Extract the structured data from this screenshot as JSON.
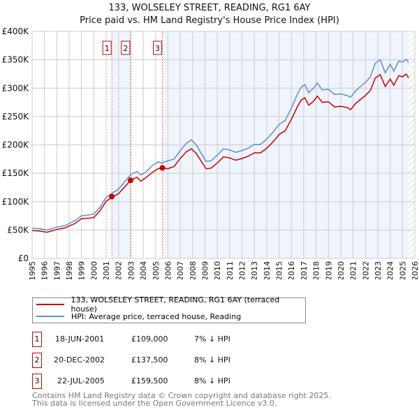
{
  "chart_data": {
    "type": "line",
    "title": "133, WOLSELEY STREET, READING, RG1 6AY",
    "subtitle": "Price paid vs. HM Land Registry's House Price Index (HPI)",
    "xlim": [
      1995,
      2026
    ],
    "ylim": [
      0,
      400000
    ],
    "yticks": [
      {
        "v": 0,
        "label": "£0"
      },
      {
        "v": 50000,
        "label": "£50K"
      },
      {
        "v": 100000,
        "label": "£100K"
      },
      {
        "v": 150000,
        "label": "£150K"
      },
      {
        "v": 200000,
        "label": "£200K"
      },
      {
        "v": 250000,
        "label": "£250K"
      },
      {
        "v": 300000,
        "label": "£300K"
      },
      {
        "v": 350000,
        "label": "£350K"
      },
      {
        "v": 400000,
        "label": "£400K"
      }
    ],
    "xticks": [
      "1995",
      "1996",
      "1997",
      "1998",
      "1999",
      "2000",
      "2001",
      "2002",
      "2003",
      "2004",
      "2005",
      "2006",
      "2007",
      "2008",
      "2009",
      "2010",
      "2011",
      "2012",
      "2013",
      "2014",
      "2015",
      "2016",
      "2017",
      "2018",
      "2019",
      "2020",
      "2021",
      "2022",
      "2023",
      "2024",
      "2025",
      "2026"
    ],
    "x": [
      1995,
      1995.7,
      1996.2,
      1997,
      1997.7,
      1998.5,
      1999,
      1999.7,
      2000,
      2000.5,
      2001,
      2001.5,
      2002,
      2002.5,
      2003,
      2003.5,
      2003.8,
      2004.2,
      2004.7,
      2005.2,
      2005.5,
      2006,
      2006.5,
      2007,
      2007.5,
      2007.9,
      2008.3,
      2008.7,
      2009.1,
      2009.5,
      2010,
      2010.5,
      2011,
      2011.5,
      2012,
      2012.5,
      2013,
      2013.5,
      2014,
      2014.5,
      2015,
      2015.5,
      2016,
      2016.5,
      2016.8,
      2017.1,
      2017.4,
      2017.8,
      2018.1,
      2018.5,
      2019,
      2019.5,
      2020,
      2020.5,
      2020.8,
      2021.2,
      2021.6,
      2022,
      2022.4,
      2022.8,
      2023.2,
      2023.6,
      2024,
      2024.3,
      2024.7,
      2025,
      2025.3,
      2025.5
    ],
    "series": [
      {
        "name": "133, WOLSELEY STREET, READING, RG1 6AY (terraced house)",
        "color": "#cc0000",
        "values": [
          49,
          48,
          46,
          51,
          54,
          62,
          70,
          71,
          72,
          84,
          101,
          108,
          114,
          126,
          138,
          143,
          136,
          142,
          151,
          158,
          159,
          158,
          162,
          176,
          188,
          193,
          185,
          171,
          158,
          159,
          168,
          179,
          177,
          173,
          176,
          180,
          186,
          186,
          194,
          205,
          218,
          225,
          245,
          268,
          279,
          283,
          270,
          277,
          286,
          275,
          276,
          267,
          268,
          266,
          262,
          273,
          280,
          287,
          296,
          318,
          324,
          303,
          316,
          305,
          322,
          320,
          325,
          318
        ]
      },
      {
        "name": "HPI: Average price, terraced house, Reading",
        "color": "#5b8fd0",
        "values": [
          53,
          52,
          50,
          55,
          58,
          67,
          75,
          77,
          78,
          90,
          108,
          115,
          122,
          135,
          148,
          153,
          147,
          152,
          163,
          170,
          168,
          172,
          175,
          190,
          203,
          209,
          200,
          185,
          171,
          172,
          182,
          193,
          191,
          187,
          190,
          194,
          201,
          201,
          210,
          222,
          236,
          243,
          265,
          290,
          302,
          306,
          292,
          300,
          309,
          297,
          298,
          289,
          290,
          287,
          284,
          295,
          303,
          310,
          320,
          344,
          350,
          327,
          342,
          330,
          348,
          346,
          351,
          345
        ]
      }
    ],
    "value_unit": "thousands GBP",
    "sales": [
      {
        "n": "1",
        "x": 2001.46,
        "date": "18-JUN-2001",
        "price": "£109,000",
        "value": 109,
        "hpi": "7% ↓ HPI"
      },
      {
        "n": "2",
        "x": 2002.97,
        "date": "20-DEC-2002",
        "price": "£137,500",
        "value": 137.5,
        "hpi": "8% ↓ HPI"
      },
      {
        "n": "3",
        "x": 2005.55,
        "date": "22-JUL-2005",
        "price": "£159,500",
        "value": 159.5,
        "hpi": "8% ↓ HPI"
      }
    ],
    "forecast_from": 2025.5
  },
  "footer": {
    "line1": "Contains HM Land Registry data © Crown copyright and database right 2025.",
    "line2": "This data is licensed under the Open Government Licence v3.0."
  }
}
